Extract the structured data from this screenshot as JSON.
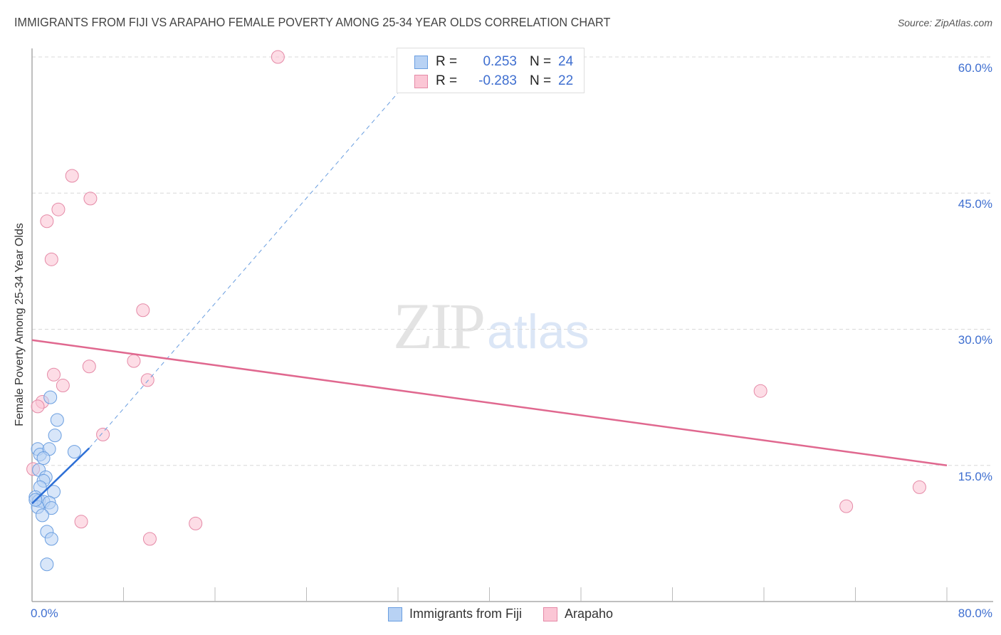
{
  "header": {
    "title": "IMMIGRANTS FROM FIJI VS ARAPAHO FEMALE POVERTY AMONG 25-34 YEAR OLDS CORRELATION CHART",
    "source": "Source: ZipAtlas.com"
  },
  "watermark": {
    "zip": "ZIP",
    "atlas": "atlas"
  },
  "axes": {
    "ylabel": "Female Poverty Among 25-34 Year Olds",
    "yticks": [
      "60.0%",
      "45.0%",
      "30.0%",
      "15.0%"
    ],
    "xtick_left": "0.0%",
    "xtick_right": "80.0%"
  },
  "legend": {
    "series": [
      {
        "name": "Immigrants from Fiji",
        "r_label": "R =",
        "r_value": "0.253",
        "n_label": "N =",
        "n_value": "24",
        "fill": "#b8d2f4",
        "stroke": "#6a9ee0"
      },
      {
        "name": "Arapaho",
        "r_label": "R =",
        "r_value": "-0.283",
        "n_label": "N =",
        "n_value": "22",
        "fill": "#fbc6d5",
        "stroke": "#e58aa7"
      }
    ]
  },
  "colors": {
    "blue_line": "#2d6fd6",
    "pink_line": "#e0688f",
    "tick_text": "#3f6fd0",
    "grid": "#d8d8d8"
  },
  "chart_data": {
    "type": "scatter",
    "title": "IMMIGRANTS FROM FIJI VS ARAPAHO FEMALE POVERTY AMONG 25-34 YEAR OLDS CORRELATION CHART",
    "xlabel": "",
    "ylabel": "Female Poverty Among 25-34 Year Olds",
    "xlim": [
      0,
      80
    ],
    "ylim": [
      0,
      60
    ],
    "x_unit": "%",
    "y_unit": "%",
    "grid": true,
    "legend_position": "top-center",
    "series": [
      {
        "name": "Immigrants from Fiji",
        "color": "#6a9ee0",
        "r": 0.253,
        "n": 24,
        "points": [
          [
            0.5,
            16.8
          ],
          [
            1.6,
            22.5
          ],
          [
            2.2,
            20.0
          ],
          [
            2.0,
            18.3
          ],
          [
            0.7,
            16.2
          ],
          [
            1.5,
            16.8
          ],
          [
            1.0,
            15.8
          ],
          [
            3.7,
            16.5
          ],
          [
            0.6,
            14.5
          ],
          [
            1.2,
            13.7
          ],
          [
            1.0,
            13.3
          ],
          [
            0.7,
            12.6
          ],
          [
            1.9,
            12.1
          ],
          [
            0.3,
            11.5
          ],
          [
            0.6,
            11.1
          ],
          [
            1.0,
            11.0
          ],
          [
            1.5,
            10.9
          ],
          [
            1.7,
            10.3
          ],
          [
            0.5,
            10.4
          ],
          [
            0.9,
            9.5
          ],
          [
            1.3,
            7.7
          ],
          [
            1.7,
            6.9
          ],
          [
            1.3,
            4.1
          ],
          [
            0.3,
            11.2
          ]
        ],
        "trend": {
          "x": [
            0,
            5
          ],
          "y": [
            10.8,
            16.9
          ],
          "extended_dashed_to": [
            33,
            57.5
          ]
        }
      },
      {
        "name": "Arapaho",
        "color": "#e58aa7",
        "r": -0.283,
        "n": 22,
        "points": [
          [
            21.5,
            60.0
          ],
          [
            3.5,
            46.9
          ],
          [
            5.1,
            44.4
          ],
          [
            2.3,
            43.2
          ],
          [
            1.3,
            41.9
          ],
          [
            1.7,
            37.7
          ],
          [
            9.7,
            32.1
          ],
          [
            8.9,
            26.5
          ],
          [
            5.0,
            25.9
          ],
          [
            1.9,
            25.0
          ],
          [
            2.7,
            23.8
          ],
          [
            10.1,
            24.4
          ],
          [
            0.9,
            22.0
          ],
          [
            0.5,
            21.5
          ],
          [
            6.2,
            18.4
          ],
          [
            0.1,
            14.6
          ],
          [
            4.3,
            8.8
          ],
          [
            10.3,
            6.9
          ],
          [
            14.3,
            8.6
          ],
          [
            63.7,
            23.2
          ],
          [
            71.2,
            10.5
          ],
          [
            77.6,
            12.6
          ]
        ],
        "trend": {
          "x": [
            0,
            80
          ],
          "y": [
            28.8,
            15.0
          ]
        }
      }
    ]
  }
}
